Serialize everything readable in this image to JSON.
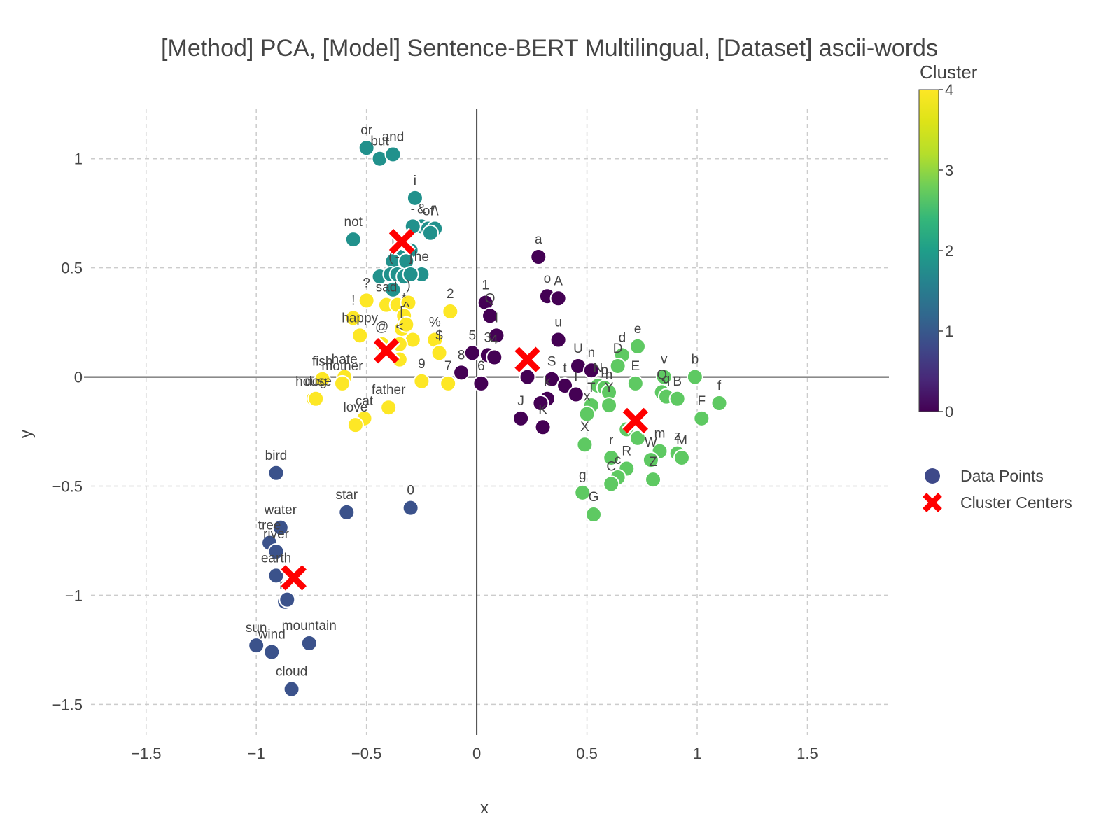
{
  "chart_data": {
    "type": "scatter",
    "title": "[Method] PCA, [Model] Sentence-BERT Multilingual, [Dataset] ascii-words",
    "xlabel": "x",
    "ylabel": "y",
    "xlim": [
      -1.75,
      1.87
    ],
    "ylim": [
      -1.64,
      1.23
    ],
    "xticks": [
      -1.5,
      -1,
      -0.5,
      0,
      0.5,
      1,
      1.5
    ],
    "yticks": [
      -1.5,
      -1,
      -0.5,
      0,
      0.5,
      1
    ],
    "xtick_labels": [
      "−1.5",
      "−1",
      "−0.5",
      "0",
      "0.5",
      "1",
      "1.5"
    ],
    "ytick_labels": [
      "−1.5",
      "−1",
      "−0.5",
      "0",
      "0.5",
      "1"
    ],
    "grid": true,
    "colorbar": {
      "title": "Cluster",
      "range": [
        0,
        4
      ],
      "ticks": [
        0,
        1,
        2,
        3,
        4
      ],
      "colorscale": "viridis"
    },
    "legend": {
      "position": "right",
      "entries": [
        "Data Points",
        "Cluster Centers"
      ]
    },
    "marker_edge_color": "#ffffff",
    "center_color": "#ff0000",
    "series": [
      {
        "name": "Data Points",
        "points": [
          {
            "x": -0.5,
            "y": 1.05,
            "label": "or",
            "cluster": 2
          },
          {
            "x": -0.44,
            "y": 1.0,
            "label": "but",
            "cluster": 2
          },
          {
            "x": -0.38,
            "y": 1.02,
            "label": "and",
            "cluster": 2
          },
          {
            "x": -0.28,
            "y": 0.82,
            "label": "i",
            "cluster": 2
          },
          {
            "x": -0.56,
            "y": 0.63,
            "label": "not",
            "cluster": 2
          },
          {
            "x": -0.25,
            "y": 0.69,
            "label": "&",
            "cluster": 2
          },
          {
            "x": -0.22,
            "y": 0.68,
            "label": "of",
            "cluster": 2
          },
          {
            "x": -0.19,
            "y": 0.68,
            "label": "/\\",
            "cluster": 2
          },
          {
            "x": -0.21,
            "y": 0.66,
            "label": "",
            "cluster": 2
          },
          {
            "x": -0.29,
            "y": 0.69,
            "label": "-",
            "cluster": 2
          },
          {
            "x": -0.3,
            "y": 0.58,
            "label": "",
            "cluster": 2
          },
          {
            "x": -0.35,
            "y": 0.55,
            "label": "",
            "cluster": 2
          },
          {
            "x": -0.38,
            "y": 0.53,
            "label": "|",
            "cluster": 2
          },
          {
            "x": -0.32,
            "y": 0.53,
            "label": "",
            "cluster": 2
          },
          {
            "x": -0.25,
            "y": 0.47,
            "label": "he",
            "cluster": 2
          },
          {
            "x": -0.44,
            "y": 0.46,
            "label": "",
            "cluster": 2
          },
          {
            "x": -0.39,
            "y": 0.47,
            "label": "(",
            "cluster": 2
          },
          {
            "x": -0.36,
            "y": 0.47,
            "label": "-",
            "cluster": 2
          },
          {
            "x": -0.33,
            "y": 0.46,
            "label": "",
            "cluster": 2
          },
          {
            "x": -0.3,
            "y": 0.47,
            "label": "]",
            "cluster": 2
          },
          {
            "x": -0.38,
            "y": 0.4,
            "label": "",
            "cluster": 2
          },
          {
            "x": -0.5,
            "y": 0.35,
            "label": "?",
            "cluster": 4
          },
          {
            "x": -0.41,
            "y": 0.33,
            "label": "sad",
            "cluster": 4
          },
          {
            "x": -0.36,
            "y": 0.33,
            "label": "",
            "cluster": 4
          },
          {
            "x": -0.31,
            "y": 0.34,
            "label": ")",
            "cluster": 4
          },
          {
            "x": -0.56,
            "y": 0.27,
            "label": "!",
            "cluster": 4
          },
          {
            "x": -0.53,
            "y": 0.19,
            "label": "happy",
            "cluster": 4
          },
          {
            "x": -0.12,
            "y": 0.3,
            "label": "2",
            "cluster": 4
          },
          {
            "x": -0.33,
            "y": 0.28,
            "label": "*",
            "cluster": 4
          },
          {
            "x": -0.34,
            "y": 0.22,
            "label": "[",
            "cluster": 4
          },
          {
            "x": -0.32,
            "y": 0.24,
            "label": "^",
            "cluster": 4
          },
          {
            "x": -0.29,
            "y": 0.17,
            "label": "",
            "cluster": 4
          },
          {
            "x": -0.19,
            "y": 0.17,
            "label": "%",
            "cluster": 4
          },
          {
            "x": -0.17,
            "y": 0.11,
            "label": "$",
            "cluster": 4
          },
          {
            "x": -0.35,
            "y": 0.15,
            "label": "<",
            "cluster": 4
          },
          {
            "x": -0.43,
            "y": 0.15,
            "label": "@",
            "cluster": 4
          },
          {
            "x": -0.35,
            "y": 0.08,
            "label": "",
            "cluster": 4
          },
          {
            "x": -0.6,
            "y": 0.0,
            "label": "hate",
            "cluster": 4
          },
          {
            "x": -0.61,
            "y": -0.03,
            "label": "mother",
            "cluster": 4
          },
          {
            "x": -0.7,
            "y": -0.01,
            "label": "fish",
            "cluster": 4
          },
          {
            "x": -0.74,
            "y": -0.1,
            "label": "house",
            "cluster": 4
          },
          {
            "x": -0.73,
            "y": -0.1,
            "label": "dog",
            "cluster": 4
          },
          {
            "x": -0.25,
            "y": -0.02,
            "label": "9",
            "cluster": 4
          },
          {
            "x": -0.13,
            "y": -0.03,
            "label": "7",
            "cluster": 4
          },
          {
            "x": -0.4,
            "y": -0.14,
            "label": "father",
            "cluster": 4
          },
          {
            "x": -0.51,
            "y": -0.19,
            "label": "cat",
            "cluster": 4
          },
          {
            "x": -0.55,
            "y": -0.22,
            "label": "love",
            "cluster": 4
          },
          {
            "x": 0.04,
            "y": 0.34,
            "label": "1",
            "cluster": 0
          },
          {
            "x": 0.06,
            "y": 0.28,
            "label": "Q",
            "cluster": 0
          },
          {
            "x": 0.09,
            "y": 0.19,
            "label": "l",
            "cluster": 0
          },
          {
            "x": -0.02,
            "y": 0.11,
            "label": "5",
            "cluster": 0
          },
          {
            "x": 0.05,
            "y": 0.1,
            "label": "3",
            "cluster": 0
          },
          {
            "x": 0.08,
            "y": 0.09,
            "label": "4",
            "cluster": 0
          },
          {
            "x": -0.07,
            "y": 0.02,
            "label": "8",
            "cluster": 0
          },
          {
            "x": 0.02,
            "y": -0.03,
            "label": "6",
            "cluster": 0
          },
          {
            "x": 0.28,
            "y": 0.55,
            "label": "a",
            "cluster": 0
          },
          {
            "x": 0.32,
            "y": 0.37,
            "label": "o",
            "cluster": 0
          },
          {
            "x": 0.37,
            "y": 0.36,
            "label": "A",
            "cluster": 0
          },
          {
            "x": 0.37,
            "y": 0.17,
            "label": "u",
            "cluster": 0
          },
          {
            "x": 0.46,
            "y": 0.05,
            "label": "U",
            "cluster": 0
          },
          {
            "x": 0.52,
            "y": 0.03,
            "label": "n",
            "cluster": 0
          },
          {
            "x": 0.23,
            "y": 0.0,
            "label": "",
            "cluster": 0
          },
          {
            "x": 0.34,
            "y": -0.01,
            "label": "S",
            "cluster": 0
          },
          {
            "x": 0.4,
            "y": -0.04,
            "label": "t",
            "cluster": 0
          },
          {
            "x": 0.45,
            "y": -0.08,
            "label": "I",
            "cluster": 0
          },
          {
            "x": 0.32,
            "y": -0.1,
            "label": "k",
            "cluster": 0
          },
          {
            "x": 0.29,
            "y": -0.12,
            "label": "",
            "cluster": 0
          },
          {
            "x": 0.2,
            "y": -0.19,
            "label": "J",
            "cluster": 0
          },
          {
            "x": 0.3,
            "y": -0.23,
            "label": "K",
            "cluster": 0
          },
          {
            "x": 0.73,
            "y": 0.14,
            "label": "e",
            "cluster": 3
          },
          {
            "x": 0.66,
            "y": 0.1,
            "label": "d",
            "cluster": 3
          },
          {
            "x": 0.64,
            "y": 0.05,
            "label": "D",
            "cluster": 3
          },
          {
            "x": 0.99,
            "y": 0.0,
            "label": "b",
            "cluster": 3
          },
          {
            "x": 1.1,
            "y": -0.12,
            "label": "f",
            "cluster": 3
          },
          {
            "x": 0.85,
            "y": 0.0,
            "label": "v",
            "cluster": 3
          },
          {
            "x": 0.72,
            "y": -0.03,
            "label": "E",
            "cluster": 3
          },
          {
            "x": 0.84,
            "y": -0.07,
            "label": "Q",
            "cluster": 3
          },
          {
            "x": 0.86,
            "y": -0.09,
            "label": "q",
            "cluster": 3
          },
          {
            "x": 0.91,
            "y": -0.1,
            "label": "B",
            "cluster": 3
          },
          {
            "x": 0.55,
            "y": -0.04,
            "label": "N",
            "cluster": 3
          },
          {
            "x": 0.58,
            "y": -0.05,
            "label": "p",
            "cluster": 3
          },
          {
            "x": 0.6,
            "y": -0.07,
            "label": "h",
            "cluster": 3
          },
          {
            "x": 0.52,
            "y": -0.13,
            "label": "T",
            "cluster": 3
          },
          {
            "x": 0.6,
            "y": -0.13,
            "label": "Y",
            "cluster": 3
          },
          {
            "x": 0.5,
            "y": -0.17,
            "label": "x",
            "cluster": 3
          },
          {
            "x": 1.02,
            "y": -0.19,
            "label": "F",
            "cluster": 3
          },
          {
            "x": 0.68,
            "y": -0.24,
            "label": ".",
            "cluster": 3
          },
          {
            "x": 0.73,
            "y": -0.28,
            "label": "",
            "cluster": 3
          },
          {
            "x": 0.49,
            "y": -0.31,
            "label": "X",
            "cluster": 3
          },
          {
            "x": 0.61,
            "y": -0.37,
            "label": "r",
            "cluster": 3
          },
          {
            "x": 0.83,
            "y": -0.34,
            "label": "m",
            "cluster": 3
          },
          {
            "x": 0.91,
            "y": -0.35,
            "label": "z",
            "cluster": 3
          },
          {
            "x": 0.93,
            "y": -0.37,
            "label": "M",
            "cluster": 3
          },
          {
            "x": 0.79,
            "y": -0.38,
            "label": "W",
            "cluster": 3
          },
          {
            "x": 0.68,
            "y": -0.42,
            "label": "R",
            "cluster": 3
          },
          {
            "x": 0.64,
            "y": -0.46,
            "label": "c",
            "cluster": 3
          },
          {
            "x": 0.8,
            "y": -0.47,
            "label": "Z",
            "cluster": 3
          },
          {
            "x": 0.61,
            "y": -0.49,
            "label": "C",
            "cluster": 3
          },
          {
            "x": 0.48,
            "y": -0.53,
            "label": "g",
            "cluster": 3
          },
          {
            "x": 0.53,
            "y": -0.63,
            "label": "G",
            "cluster": 3
          },
          {
            "x": -0.91,
            "y": -0.44,
            "label": "bird",
            "cluster": 1
          },
          {
            "x": -0.59,
            "y": -0.62,
            "label": "star",
            "cluster": 1
          },
          {
            "x": -0.3,
            "y": -0.6,
            "label": "0",
            "cluster": 1
          },
          {
            "x": -0.89,
            "y": -0.69,
            "label": "water",
            "cluster": 1
          },
          {
            "x": -0.94,
            "y": -0.76,
            "label": "tree",
            "cluster": 1
          },
          {
            "x": -0.91,
            "y": -0.8,
            "label": "river",
            "cluster": 1
          },
          {
            "x": -0.91,
            "y": -0.91,
            "label": "earth",
            "cluster": 1
          },
          {
            "x": -0.87,
            "y": -1.03,
            "label": "m",
            "cluster": 1
          },
          {
            "x": -0.86,
            "y": -1.02,
            "label": "",
            "cluster": 1
          },
          {
            "x": -1.0,
            "y": -1.23,
            "label": "sun",
            "cluster": 1
          },
          {
            "x": -0.93,
            "y": -1.26,
            "label": "wind",
            "cluster": 1
          },
          {
            "x": -0.76,
            "y": -1.22,
            "label": "mountain",
            "cluster": 1
          },
          {
            "x": -0.84,
            "y": -1.43,
            "label": "cloud",
            "cluster": 1
          }
        ]
      },
      {
        "name": "Cluster Centers",
        "points": [
          {
            "x": -0.34,
            "y": 0.62,
            "cluster": 2
          },
          {
            "x": -0.41,
            "y": 0.12,
            "cluster": 4
          },
          {
            "x": 0.23,
            "y": 0.08,
            "cluster": 0
          },
          {
            "x": 0.72,
            "y": -0.2,
            "cluster": 3
          },
          {
            "x": -0.83,
            "y": -0.92,
            "cluster": 1
          }
        ]
      }
    ]
  }
}
